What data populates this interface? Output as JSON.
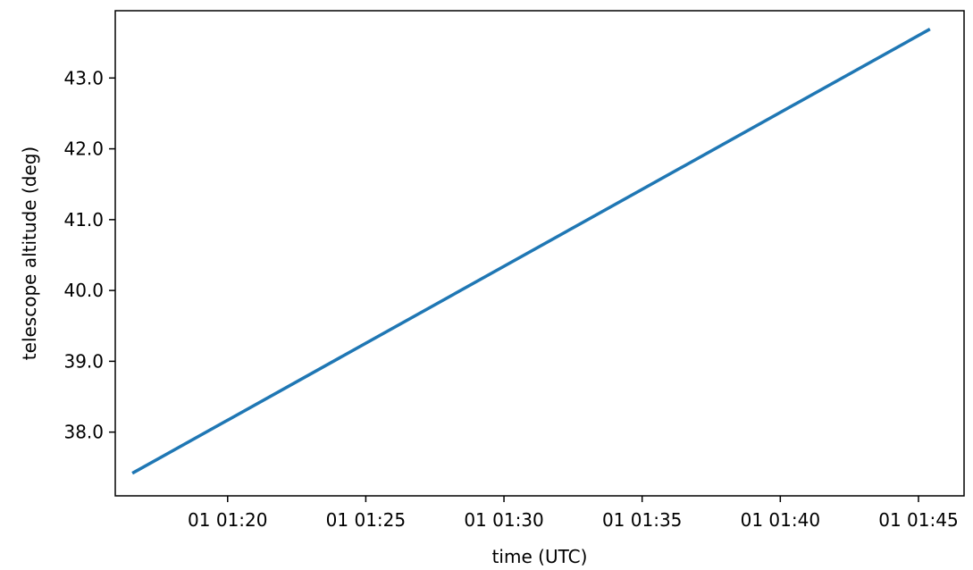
{
  "chart_data": {
    "type": "line",
    "title": "",
    "xlabel": "time (UTC)",
    "ylabel": "telescope altitude (deg)",
    "x_tick_labels": [
      "01 01:20",
      "01 01:25",
      "01 01:30",
      "01 01:35",
      "01 01:40",
      "01 01:45"
    ],
    "x_ticks": [
      "01:20",
      "01:25",
      "01:30",
      "01:35",
      "01:40",
      "01:45"
    ],
    "xlim": [
      "01:15:56",
      "01:46:39"
    ],
    "y_tick_labels": [
      "38.0",
      "39.0",
      "40.0",
      "41.0",
      "42.0",
      "43.0"
    ],
    "y_ticks": [
      38.0,
      39.0,
      40.0,
      41.0,
      42.0,
      43.0
    ],
    "ylim": [
      37.1,
      43.95
    ],
    "grid": false,
    "legend": "none",
    "series": [
      {
        "color": "#1f77b4",
        "x": [
          "01:16:36",
          "01:45:22"
        ],
        "y": [
          37.43,
          43.68
        ]
      }
    ]
  }
}
